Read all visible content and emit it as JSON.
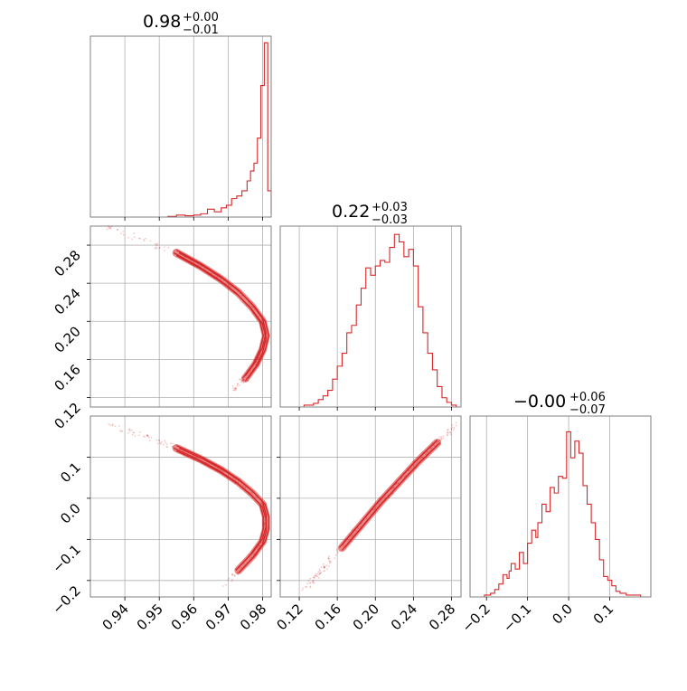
{
  "figure": {
    "series_color": "#d62728",
    "grid_color": "#b0b0b0",
    "frame_color": "#808080"
  },
  "chart_data": [
    {
      "id": "hist_p0",
      "type": "histogram",
      "title": {
        "value": "0.98",
        "plus": "+0.00",
        "minus": "−0.01"
      },
      "xlim": [
        0.93,
        0.9825
      ],
      "grid_x": [
        0.94,
        0.95,
        0.96,
        0.97,
        0.98
      ],
      "bins": [
        [
          0.93,
          0
        ],
        [
          0.935,
          0
        ],
        [
          0.9435,
          0
        ],
        [
          0.95,
          0
        ],
        [
          0.9525,
          1
        ],
        [
          0.955,
          3
        ],
        [
          0.9575,
          2
        ],
        [
          0.96,
          3
        ],
        [
          0.962,
          5
        ],
        [
          0.964,
          12
        ],
        [
          0.966,
          8
        ],
        [
          0.968,
          14
        ],
        [
          0.9695,
          18
        ],
        [
          0.971,
          28
        ],
        [
          0.9725,
          32
        ],
        [
          0.974,
          40
        ],
        [
          0.9755,
          55
        ],
        [
          0.9765,
          70
        ],
        [
          0.9775,
          82
        ],
        [
          0.9785,
          120
        ],
        [
          0.9795,
          200
        ],
        [
          0.9805,
          265
        ],
        [
          0.9815,
          40
        ],
        [
          0.9825,
          5
        ]
      ],
      "ymax": 275
    },
    {
      "id": "hist_p1",
      "type": "histogram",
      "title": {
        "value": "0.22",
        "plus": "+0.03",
        "minus": "−0.03"
      },
      "xlim": [
        0.1,
        0.29
      ],
      "grid_x": [
        0.12,
        0.16,
        0.2,
        0.24,
        0.28
      ],
      "bins": [
        [
          0.1,
          0
        ],
        [
          0.125,
          2
        ],
        [
          0.135,
          4
        ],
        [
          0.14,
          8
        ],
        [
          0.145,
          12
        ],
        [
          0.15,
          18
        ],
        [
          0.155,
          30
        ],
        [
          0.16,
          44
        ],
        [
          0.165,
          58
        ],
        [
          0.17,
          80
        ],
        [
          0.175,
          88
        ],
        [
          0.18,
          110
        ],
        [
          0.185,
          128
        ],
        [
          0.19,
          150
        ],
        [
          0.195,
          142
        ],
        [
          0.2,
          152
        ],
        [
          0.205,
          158
        ],
        [
          0.21,
          156
        ],
        [
          0.215,
          172
        ],
        [
          0.22,
          186
        ],
        [
          0.225,
          178
        ],
        [
          0.23,
          162
        ],
        [
          0.235,
          170
        ],
        [
          0.24,
          152
        ],
        [
          0.245,
          108
        ],
        [
          0.25,
          80
        ],
        [
          0.255,
          58
        ],
        [
          0.26,
          40
        ],
        [
          0.265,
          22
        ],
        [
          0.27,
          10
        ],
        [
          0.275,
          5
        ],
        [
          0.28,
          2
        ],
        [
          0.285,
          0
        ]
      ],
      "ymax": 195
    },
    {
      "id": "hist_p2",
      "type": "histogram",
      "title": {
        "value": "−0.00",
        "plus": "+0.06",
        "minus": "−0.07"
      },
      "xlim": [
        -0.24,
        0.2
      ],
      "grid_x": [
        -0.2,
        -0.1,
        0.0,
        0.1
      ],
      "bins": [
        [
          -0.24,
          0
        ],
        [
          -0.205,
          2
        ],
        [
          -0.19,
          4
        ],
        [
          -0.18,
          8
        ],
        [
          -0.17,
          14
        ],
        [
          -0.16,
          24
        ],
        [
          -0.15,
          20
        ],
        [
          -0.145,
          28
        ],
        [
          -0.14,
          36
        ],
        [
          -0.13,
          30
        ],
        [
          -0.12,
          48
        ],
        [
          -0.11,
          36
        ],
        [
          -0.1,
          58
        ],
        [
          -0.09,
          72
        ],
        [
          -0.08,
          64
        ],
        [
          -0.075,
          80
        ],
        [
          -0.065,
          100
        ],
        [
          -0.055,
          92
        ],
        [
          -0.045,
          118
        ],
        [
          -0.035,
          112
        ],
        [
          -0.025,
          130
        ],
        [
          -0.015,
          128
        ],
        [
          -0.005,
          178
        ],
        [
          0.005,
          150
        ],
        [
          0.015,
          168
        ],
        [
          0.025,
          155
        ],
        [
          0.035,
          120
        ],
        [
          0.045,
          100
        ],
        [
          0.055,
          80
        ],
        [
          0.065,
          62
        ],
        [
          0.075,
          40
        ],
        [
          0.085,
          22
        ],
        [
          0.095,
          18
        ],
        [
          0.105,
          12
        ],
        [
          0.115,
          6
        ],
        [
          0.125,
          4
        ],
        [
          0.14,
          2
        ],
        [
          0.16,
          2
        ],
        [
          0.175,
          0
        ]
      ],
      "ymax": 195
    },
    {
      "id": "scatter_p0_p1",
      "type": "scatter",
      "xlim": [
        0.93,
        0.9825
      ],
      "ylim": [
        0.11,
        0.3
      ],
      "grid_x": [
        0.94,
        0.95,
        0.96,
        0.97,
        0.98
      ],
      "grid_y": [
        0.12,
        0.16,
        0.2,
        0.24,
        0.28
      ],
      "curve": [
        [
          0.935,
          0.3
        ],
        [
          0.945,
          0.285
        ],
        [
          0.955,
          0.272
        ],
        [
          0.962,
          0.258
        ],
        [
          0.968,
          0.244
        ],
        [
          0.973,
          0.23
        ],
        [
          0.977,
          0.215
        ],
        [
          0.98,
          0.2
        ],
        [
          0.981,
          0.185
        ],
        [
          0.98,
          0.17
        ],
        [
          0.978,
          0.155
        ],
        [
          0.975,
          0.14
        ],
        [
          0.971,
          0.128
        ]
      ]
    },
    {
      "id": "scatter_p0_p2",
      "type": "scatter",
      "xlim": [
        0.93,
        0.9825
      ],
      "ylim": [
        -0.24,
        0.2
      ],
      "grid_x": [
        0.94,
        0.95,
        0.96,
        0.97,
        0.98
      ],
      "grid_y": [
        -0.2,
        -0.1,
        0.0,
        0.1
      ],
      "curve": [
        [
          0.936,
          0.175
        ],
        [
          0.946,
          0.15
        ],
        [
          0.955,
          0.122
        ],
        [
          0.962,
          0.095
        ],
        [
          0.968,
          0.068
        ],
        [
          0.973,
          0.04
        ],
        [
          0.977,
          0.012
        ],
        [
          0.98,
          -0.015
        ],
        [
          0.981,
          -0.045
        ],
        [
          0.981,
          -0.075
        ],
        [
          0.98,
          -0.105
        ],
        [
          0.977,
          -0.14
        ],
        [
          0.973,
          -0.175
        ],
        [
          0.969,
          -0.21
        ]
      ]
    },
    {
      "id": "scatter_p1_p2",
      "type": "scatter",
      "xlim": [
        0.1,
        0.29
      ],
      "ylim": [
        -0.24,
        0.2
      ],
      "grid_x": [
        0.12,
        0.16,
        0.2,
        0.24,
        0.28
      ],
      "grid_y": [
        -0.2,
        -0.1,
        0.0,
        0.1
      ],
      "curve": [
        [
          0.125,
          -0.225
        ],
        [
          0.145,
          -0.17
        ],
        [
          0.165,
          -0.12
        ],
        [
          0.185,
          -0.065
        ],
        [
          0.205,
          -0.01
        ],
        [
          0.225,
          0.04
        ],
        [
          0.245,
          0.09
        ],
        [
          0.265,
          0.135
        ],
        [
          0.285,
          0.178
        ]
      ]
    }
  ],
  "axes": {
    "x_p0_ticks": [
      "0.94",
      "0.95",
      "0.96",
      "0.97",
      "0.98"
    ],
    "x_p1_ticks": [
      "0.12",
      "0.16",
      "0.20",
      "0.24",
      "0.28"
    ],
    "x_p2_ticks": [
      "−0.2",
      "−0.1",
      "0.0",
      "0.1"
    ],
    "y_p1_ticks": [
      "0.12",
      "0.16",
      "0.20",
      "0.24",
      "0.28"
    ],
    "y_p2_ticks": [
      "−0.2",
      "−0.1",
      "0.0",
      "0.1"
    ]
  }
}
